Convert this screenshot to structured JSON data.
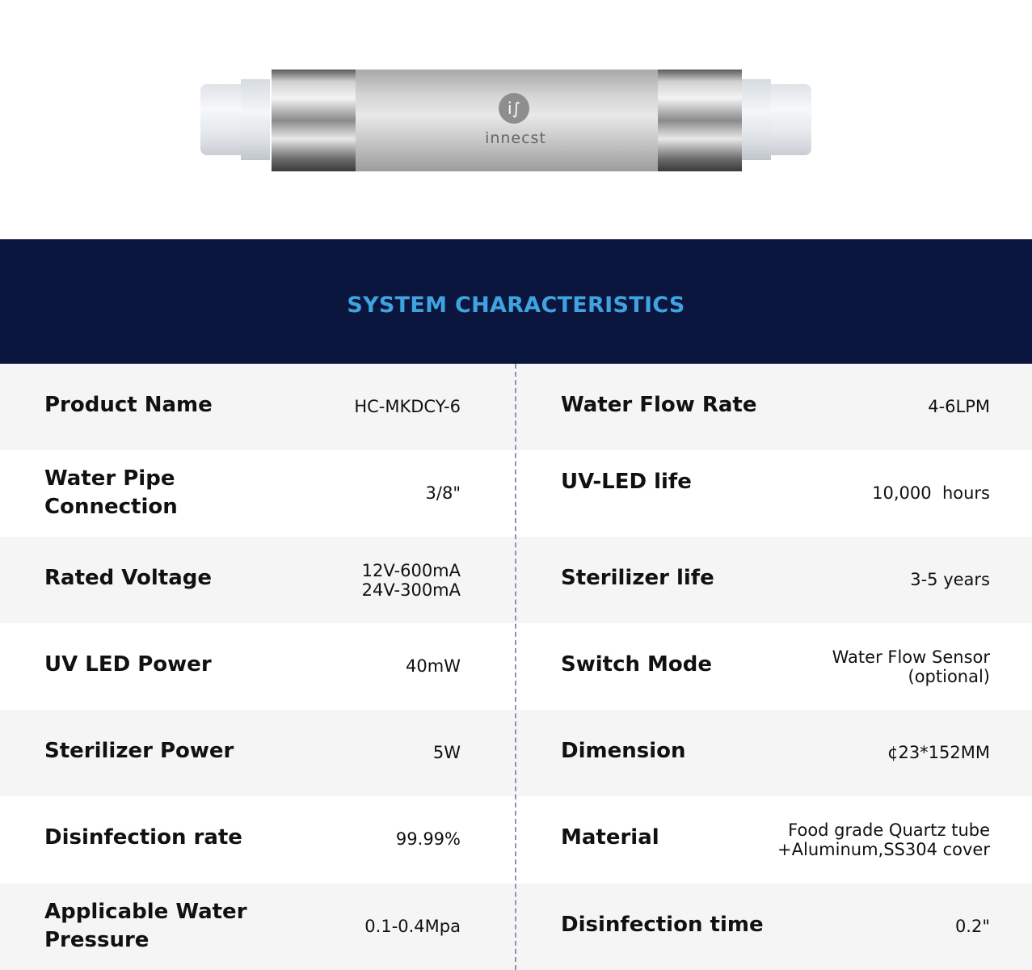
{
  "product_image": {
    "brand_logo": "innecst"
  },
  "header": {
    "title": "SYSTEM CHARACTERISTICS"
  },
  "specs": [
    {
      "left": {
        "label": "Product Name",
        "value": "HC-MKDCY-6"
      },
      "right": {
        "label": "Water Flow Rate",
        "value": "4-6LPM"
      }
    },
    {
      "left": {
        "label": "Water Pipe Connection",
        "value": "3/8\""
      },
      "right": {
        "label": "UV-LED life",
        "value": "10,000  hours"
      }
    },
    {
      "left": {
        "label": "Rated Voltage",
        "value": "12V-600mA\n24V-300mA"
      },
      "right": {
        "label": "Sterilizer life",
        "value": "3-5 years"
      }
    },
    {
      "left": {
        "label": "UV LED Power",
        "value": "40mW"
      },
      "right": {
        "label": "Switch Mode",
        "value": "Water Flow Sensor\n(optional)"
      }
    },
    {
      "left": {
        "label": "Sterilizer Power",
        "value": "5W"
      },
      "right": {
        "label": "Dimension",
        "value": "¢23*152MM"
      }
    },
    {
      "left": {
        "label": "Disinfection  rate",
        "value": "99.99%"
      },
      "right": {
        "label": "Material",
        "value": "Food grade Quartz tube\n+Aluminum,SS304 cover"
      }
    },
    {
      "left": {
        "label": "Applicable Water Pressure",
        "value": "0.1-0.4Mpa"
      },
      "right": {
        "label": "Disinfection time",
        "value": "0.2\""
      }
    }
  ],
  "colors": {
    "header_bg": "#0b163f",
    "title": "#3fa3e0",
    "row_alt": "#f5f5f5"
  }
}
